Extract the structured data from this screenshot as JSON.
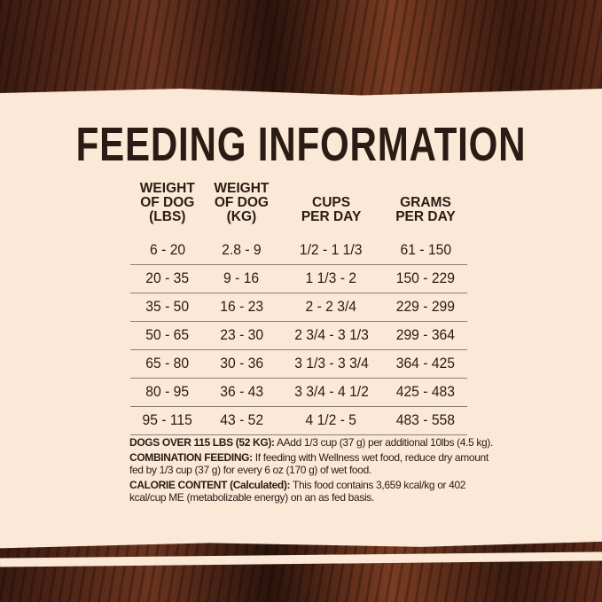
{
  "title": "FEEDING INFORMATION",
  "table": {
    "headers": [
      "WEIGHT OF DOG (LBS)",
      "WEIGHT OF DOG (KG)",
      "CUPS PER DAY",
      "GRAMS PER DAY"
    ],
    "header_lines": [
      [
        "WEIGHT",
        "OF DOG",
        "(LBS)"
      ],
      [
        "WEIGHT",
        "OF DOG",
        "(KG)"
      ],
      [
        "CUPS",
        "PER DAY"
      ],
      [
        "GRAMS",
        "PER DAY"
      ]
    ],
    "rows": [
      [
        "6 - 20",
        "2.8 - 9",
        "1/2 - 1 1/3",
        "61 - 150"
      ],
      [
        "20 - 35",
        "9 - 16",
        "1 1/3 - 2",
        "150 - 229"
      ],
      [
        "35 - 50",
        "16 - 23",
        "2 - 2 3/4",
        "229 - 299"
      ],
      [
        "50 - 65",
        "23 - 30",
        "2 3/4 - 3 1/3",
        "299 - 364"
      ],
      [
        "65 - 80",
        "30 - 36",
        "3 1/3 - 3 3/4",
        "364 - 425"
      ],
      [
        "80 - 95",
        "36 - 43",
        "3 3/4 - 4 1/2",
        "425 - 483"
      ],
      [
        "95 - 115",
        "43 - 52",
        "4 1/2 - 5",
        "483 - 558"
      ]
    ]
  },
  "notes": [
    {
      "label": "DOGS OVER 115 LBS (52 KG):",
      "text": " AAdd 1/3 cup (37 g) per additional 10lbs (4.5 kg)."
    },
    {
      "label": "COMBINATION FEEDING:",
      "text": " If feeding with Wellness wet food, reduce dry amount fed by 1/3 cup (37 g) for every 6 oz (170 g) of wet food."
    },
    {
      "label": "CALORIE CONTENT (Calculated):",
      "text": " This food contains 3,659 kcal/kg or 402 kcal/cup ME (metabolizable energy) on an as fed basis."
    }
  ],
  "colors": {
    "background": "#fbe8d6",
    "text": "#2b1b15",
    "wood": "#5a2a18"
  }
}
